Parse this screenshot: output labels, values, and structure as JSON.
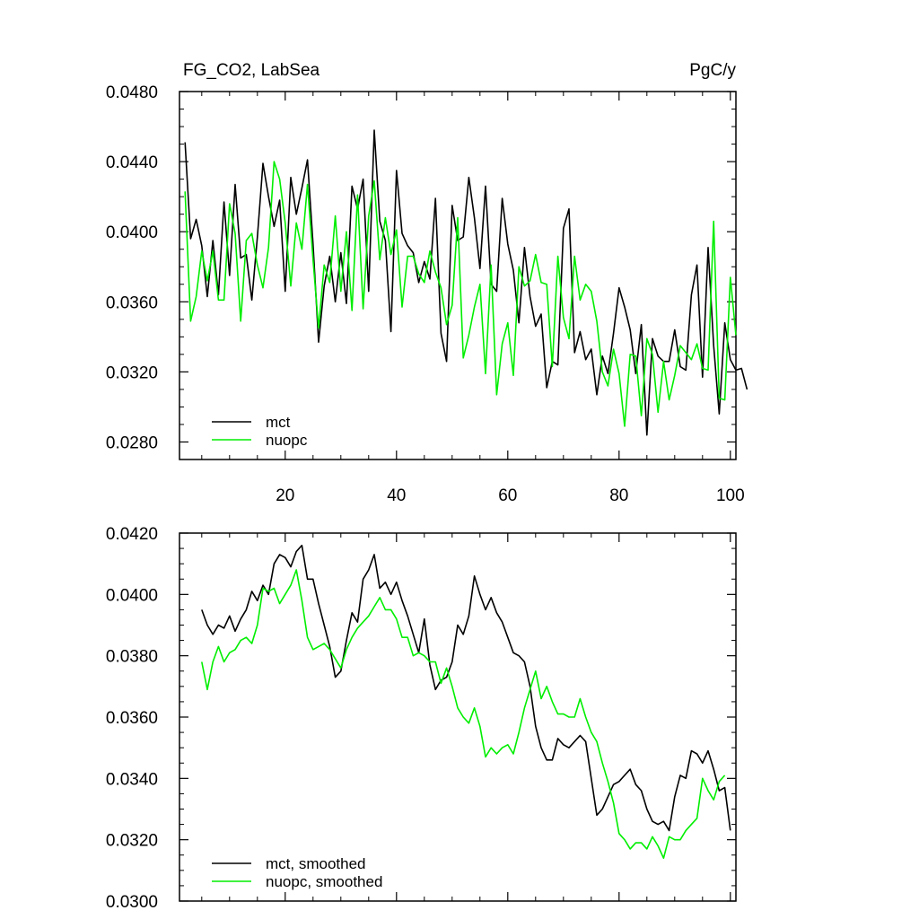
{
  "chart_data": [
    {
      "type": "line",
      "title_left": "FG_CO2, LabSea",
      "title_right": "PgC/y",
      "xlim": [
        1,
        101
      ],
      "ylim": [
        0.027,
        0.048
      ],
      "xticks": [
        20,
        40,
        60,
        80,
        100
      ],
      "xtick_labels": [
        "20",
        "40",
        "60",
        "80",
        "100"
      ],
      "yticks": [
        0.028,
        0.032,
        0.036,
        0.04,
        0.044,
        0.048
      ],
      "ytick_labels": [
        "0.0280",
        "0.0320",
        "0.0360",
        "0.0400",
        "0.0440",
        "0.0480"
      ],
      "x_start": 2,
      "series": [
        {
          "name": "mct",
          "color": "#000000",
          "values": [
            0.0451,
            0.0396,
            0.0407,
            0.0392,
            0.0363,
            0.0395,
            0.0364,
            0.0417,
            0.0375,
            0.0427,
            0.0385,
            0.0387,
            0.0361,
            0.0397,
            0.0439,
            0.042,
            0.0403,
            0.0418,
            0.0366,
            0.0431,
            0.041,
            0.0425,
            0.0441,
            0.0393,
            0.0337,
            0.0369,
            0.0386,
            0.036,
            0.0388,
            0.0359,
            0.0426,
            0.0413,
            0.043,
            0.0366,
            0.0458,
            0.0406,
            0.0395,
            0.0343,
            0.0435,
            0.0399,
            0.0392,
            0.0388,
            0.0371,
            0.0383,
            0.0373,
            0.0419,
            0.0342,
            0.0326,
            0.0415,
            0.0395,
            0.0397,
            0.0431,
            0.0408,
            0.0379,
            0.0426,
            0.037,
            0.0366,
            0.0419,
            0.0393,
            0.0378,
            0.0348,
            0.0391,
            0.0363,
            0.0346,
            0.0353,
            0.0311,
            0.0326,
            0.0324,
            0.0402,
            0.0413,
            0.0331,
            0.0343,
            0.0327,
            0.0333,
            0.0307,
            0.0329,
            0.0319,
            0.0342,
            0.0368,
            0.0357,
            0.0344,
            0.0319,
            0.0347,
            0.0284,
            0.0339,
            0.0329,
            0.0326,
            0.0326,
            0.0344,
            0.0323,
            0.0321,
            0.0364,
            0.0381,
            0.0317,
            0.0391,
            0.0335,
            0.0296,
            0.0348,
            0.0327,
            0.0321,
            0.0322,
            0.031
          ]
        },
        {
          "name": "nuopc",
          "color": "#00ee00",
          "values": [
            0.0423,
            0.0349,
            0.0363,
            0.0389,
            0.0372,
            0.0389,
            0.0361,
            0.0361,
            0.0416,
            0.0399,
            0.0349,
            0.0395,
            0.0399,
            0.0381,
            0.0368,
            0.0391,
            0.044,
            0.043,
            0.0405,
            0.0369,
            0.0405,
            0.039,
            0.0427,
            0.0384,
            0.0345,
            0.0381,
            0.0371,
            0.0409,
            0.0366,
            0.04,
            0.0355,
            0.0421,
            0.0356,
            0.0409,
            0.0429,
            0.0384,
            0.0408,
            0.0387,
            0.0401,
            0.0357,
            0.0386,
            0.0386,
            0.0376,
            0.0371,
            0.0389,
            0.0377,
            0.0368,
            0.0347,
            0.0358,
            0.0408,
            0.0328,
            0.0341,
            0.0357,
            0.037,
            0.0319,
            0.0381,
            0.0307,
            0.0336,
            0.0348,
            0.0318,
            0.038,
            0.0369,
            0.0372,
            0.0387,
            0.0371,
            0.037,
            0.0323,
            0.0386,
            0.0351,
            0.0339,
            0.0386,
            0.0361,
            0.037,
            0.0366,
            0.0349,
            0.032,
            0.0312,
            0.0333,
            0.0319,
            0.0289,
            0.033,
            0.0329,
            0.0295,
            0.0339,
            0.033,
            0.0297,
            0.0326,
            0.0304,
            0.0318,
            0.0335,
            0.0331,
            0.0327,
            0.0336,
            0.0322,
            0.0321,
            0.0406,
            0.0305,
            0.0304,
            0.0374,
            0.0341
          ]
        }
      ],
      "legend": [
        {
          "label": "mct",
          "color": "#000000"
        },
        {
          "label": "nuopc",
          "color": "#00ee00"
        }
      ],
      "legend_position": "bottom-left"
    },
    {
      "type": "line",
      "xlim": [
        1,
        101
      ],
      "ylim": [
        0.03,
        0.042
      ],
      "xticks": [
        20,
        40,
        60,
        80,
        100
      ],
      "yticks": [
        0.03,
        0.032,
        0.034,
        0.036,
        0.038,
        0.04,
        0.042
      ],
      "ytick_labels": [
        "0.0300",
        "0.0320",
        "0.0340",
        "0.0360",
        "0.0380",
        "0.0400",
        "0.0420"
      ],
      "x_start": 5,
      "series": [
        {
          "name": "mct, smoothed",
          "color": "#000000",
          "values": [
            0.0395,
            0.039,
            0.0387,
            0.039,
            0.0389,
            0.0393,
            0.0388,
            0.0392,
            0.0395,
            0.0401,
            0.0398,
            0.0403,
            0.04,
            0.041,
            0.0413,
            0.0412,
            0.0409,
            0.0414,
            0.0416,
            0.0405,
            0.0405,
            0.0397,
            0.039,
            0.0383,
            0.0373,
            0.0375,
            0.0385,
            0.0394,
            0.0391,
            0.0405,
            0.0408,
            0.0413,
            0.0402,
            0.0404,
            0.04,
            0.0404,
            0.0398,
            0.0393,
            0.0387,
            0.0381,
            0.0392,
            0.0377,
            0.0369,
            0.0372,
            0.0373,
            0.0378,
            0.039,
            0.0387,
            0.0393,
            0.0406,
            0.04,
            0.0395,
            0.0399,
            0.0394,
            0.0391,
            0.0386,
            0.0381,
            0.038,
            0.0378,
            0.037,
            0.0357,
            0.035,
            0.0346,
            0.0346,
            0.0353,
            0.0351,
            0.035,
            0.0352,
            0.0354,
            0.0352,
            0.034,
            0.0328,
            0.033,
            0.0334,
            0.0338,
            0.0339,
            0.0341,
            0.0343,
            0.0338,
            0.0336,
            0.033,
            0.0326,
            0.0325,
            0.0326,
            0.0323,
            0.0334,
            0.0341,
            0.034,
            0.0349,
            0.0348,
            0.0345,
            0.0349,
            0.0343,
            0.0336,
            0.0337,
            0.0323
          ]
        },
        {
          "name": "nuopc, smoothed",
          "color": "#00ee00",
          "values": [
            0.0378,
            0.0369,
            0.0378,
            0.0383,
            0.0378,
            0.0381,
            0.0382,
            0.0385,
            0.0386,
            0.0384,
            0.039,
            0.0402,
            0.0401,
            0.0402,
            0.0397,
            0.04,
            0.0403,
            0.0408,
            0.0398,
            0.0386,
            0.0382,
            0.0383,
            0.0384,
            0.0382,
            0.0379,
            0.0376,
            0.0382,
            0.0386,
            0.0389,
            0.0391,
            0.0393,
            0.0396,
            0.0399,
            0.0395,
            0.0395,
            0.0392,
            0.0386,
            0.0386,
            0.038,
            0.0381,
            0.038,
            0.0378,
            0.0378,
            0.0371,
            0.0376,
            0.037,
            0.0363,
            0.036,
            0.0358,
            0.0363,
            0.0357,
            0.0347,
            0.035,
            0.0348,
            0.035,
            0.0351,
            0.0348,
            0.0355,
            0.0363,
            0.0369,
            0.0375,
            0.0366,
            0.037,
            0.0365,
            0.0361,
            0.0361,
            0.036,
            0.036,
            0.0366,
            0.036,
            0.0355,
            0.0352,
            0.0345,
            0.0339,
            0.0332,
            0.0322,
            0.032,
            0.0317,
            0.0319,
            0.0319,
            0.0317,
            0.0321,
            0.0318,
            0.0314,
            0.0321,
            0.032,
            0.032,
            0.0323,
            0.0325,
            0.0327,
            0.034,
            0.0336,
            0.0333,
            0.0339,
            0.0341
          ]
        }
      ],
      "legend": [
        {
          "label": "mct, smoothed",
          "color": "#000000"
        },
        {
          "label": "nuopc, smoothed",
          "color": "#00ee00"
        }
      ],
      "legend_position": "bottom-left"
    }
  ]
}
